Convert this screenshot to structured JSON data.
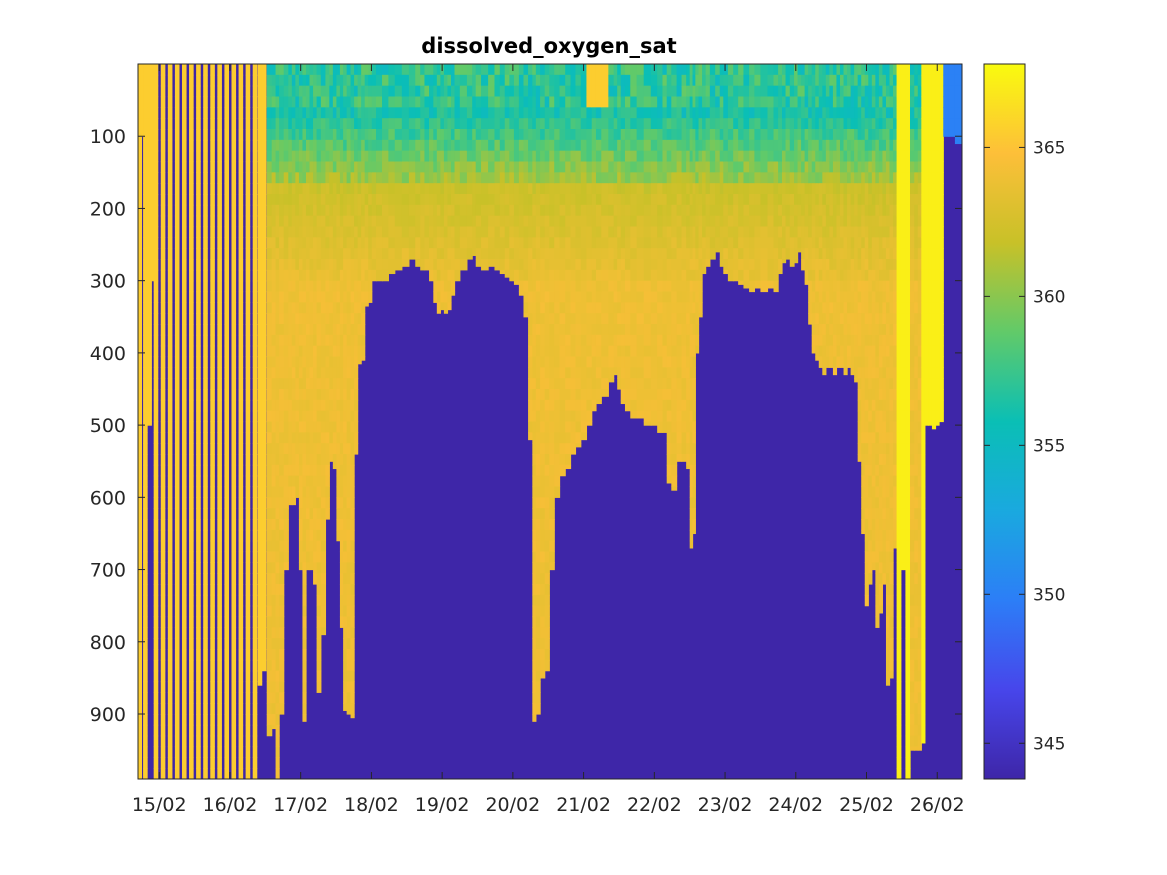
{
  "chart_data": {
    "type": "heatmap",
    "title": "dissolved_oxygen_sat",
    "xlabel": "",
    "ylabel": "",
    "x_tick_labels": [
      "15/02",
      "16/02",
      "17/02",
      "18/02",
      "19/02",
      "20/02",
      "21/02",
      "22/02",
      "23/02",
      "24/02",
      "25/02",
      "26/02"
    ],
    "x_tick_days": [
      15,
      16,
      17,
      18,
      19,
      20,
      21,
      22,
      23,
      24,
      25,
      26
    ],
    "xlim_days": [
      14.7,
      26.35
    ],
    "y_tick_values": [
      100,
      200,
      300,
      400,
      500,
      600,
      700,
      800,
      900
    ],
    "ylim": [
      0,
      990
    ],
    "y_reversed": true,
    "colorbar": {
      "colormap": "parula",
      "clim": [
        343.8,
        367.8
      ],
      "tick_values": [
        345,
        350,
        355,
        360,
        365
      ]
    },
    "profile_bottom_depth": [
      [
        14.72,
        990
      ],
      [
        14.76,
        100
      ],
      [
        14.8,
        990
      ],
      [
        14.86,
        500
      ],
      [
        14.9,
        300
      ],
      [
        14.95,
        990
      ],
      [
        15.05,
        990
      ],
      [
        15.15,
        990
      ],
      [
        15.25,
        990
      ],
      [
        15.35,
        990
      ],
      [
        15.45,
        990
      ],
      [
        15.55,
        990
      ],
      [
        15.65,
        990
      ],
      [
        15.75,
        990
      ],
      [
        15.85,
        990
      ],
      [
        15.95,
        990
      ],
      [
        16.05,
        990
      ],
      [
        16.15,
        990
      ],
      [
        16.25,
        990
      ],
      [
        16.35,
        990
      ],
      [
        16.42,
        860
      ],
      [
        16.48,
        840
      ],
      [
        16.56,
        930
      ],
      [
        16.62,
        920
      ],
      [
        16.67,
        990
      ],
      [
        16.72,
        900
      ],
      [
        16.8,
        700
      ],
      [
        16.85,
        610
      ],
      [
        16.9,
        610
      ],
      [
        16.95,
        600
      ],
      [
        17.0,
        700
      ],
      [
        17.05,
        910
      ],
      [
        17.1,
        700
      ],
      [
        17.15,
        700
      ],
      [
        17.2,
        720
      ],
      [
        17.25,
        870
      ],
      [
        17.32,
        790
      ],
      [
        17.38,
        630
      ],
      [
        17.43,
        550
      ],
      [
        17.48,
        560
      ],
      [
        17.53,
        660
      ],
      [
        17.58,
        780
      ],
      [
        17.62,
        895
      ],
      [
        17.68,
        900
      ],
      [
        17.73,
        905
      ],
      [
        17.78,
        540
      ],
      [
        17.83,
        415
      ],
      [
        17.88,
        410
      ],
      [
        17.93,
        335
      ],
      [
        17.98,
        330
      ],
      [
        18.03,
        300
      ],
      [
        18.1,
        300
      ],
      [
        18.2,
        300
      ],
      [
        18.28,
        290
      ],
      [
        18.38,
        285
      ],
      [
        18.48,
        280
      ],
      [
        18.58,
        270
      ],
      [
        18.66,
        280
      ],
      [
        18.72,
        285
      ],
      [
        18.78,
        285
      ],
      [
        18.85,
        300
      ],
      [
        18.9,
        330
      ],
      [
        18.95,
        345
      ],
      [
        19.0,
        340
      ],
      [
        19.05,
        345
      ],
      [
        19.1,
        340
      ],
      [
        19.15,
        320
      ],
      [
        19.2,
        300
      ],
      [
        19.3,
        285
      ],
      [
        19.4,
        270
      ],
      [
        19.45,
        265
      ],
      [
        19.5,
        280
      ],
      [
        19.6,
        285
      ],
      [
        19.7,
        280
      ],
      [
        19.78,
        285
      ],
      [
        19.85,
        290
      ],
      [
        19.92,
        295
      ],
      [
        19.98,
        300
      ],
      [
        20.05,
        305
      ],
      [
        20.12,
        320
      ],
      [
        20.18,
        350
      ],
      [
        20.25,
        520
      ],
      [
        20.3,
        910
      ],
      [
        20.35,
        900
      ],
      [
        20.42,
        850
      ],
      [
        20.48,
        840
      ],
      [
        20.55,
        700
      ],
      [
        20.62,
        600
      ],
      [
        20.7,
        570
      ],
      [
        20.78,
        560
      ],
      [
        20.85,
        540
      ],
      [
        20.92,
        530
      ],
      [
        21.0,
        520
      ],
      [
        21.08,
        500
      ],
      [
        21.15,
        480
      ],
      [
        21.2,
        470
      ],
      [
        21.3,
        460
      ],
      [
        21.4,
        440
      ],
      [
        21.45,
        430
      ],
      [
        21.5,
        450
      ],
      [
        21.55,
        470
      ],
      [
        21.62,
        480
      ],
      [
        21.7,
        490
      ],
      [
        21.8,
        490
      ],
      [
        21.9,
        500
      ],
      [
        22.0,
        500
      ],
      [
        22.08,
        510
      ],
      [
        22.15,
        510
      ],
      [
        22.2,
        580
      ],
      [
        22.28,
        590
      ],
      [
        22.35,
        550
      ],
      [
        22.42,
        550
      ],
      [
        22.48,
        560
      ],
      [
        22.52,
        670
      ],
      [
        22.56,
        650
      ],
      [
        22.6,
        400
      ],
      [
        22.65,
        350
      ],
      [
        22.7,
        290
      ],
      [
        22.75,
        280
      ],
      [
        22.82,
        270
      ],
      [
        22.9,
        260
      ],
      [
        22.95,
        280
      ],
      [
        23.0,
        290
      ],
      [
        23.08,
        300
      ],
      [
        23.15,
        300
      ],
      [
        23.22,
        305
      ],
      [
        23.3,
        310
      ],
      [
        23.38,
        315
      ],
      [
        23.45,
        310
      ],
      [
        23.55,
        315
      ],
      [
        23.65,
        310
      ],
      [
        23.72,
        315
      ],
      [
        23.78,
        290
      ],
      [
        23.83,
        275
      ],
      [
        23.88,
        270
      ],
      [
        23.95,
        280
      ],
      [
        24.0,
        275
      ],
      [
        24.05,
        260
      ],
      [
        24.1,
        285
      ],
      [
        24.15,
        305
      ],
      [
        24.2,
        360
      ],
      [
        24.25,
        400
      ],
      [
        24.3,
        410
      ],
      [
        24.35,
        420
      ],
      [
        24.4,
        430
      ],
      [
        24.45,
        420
      ],
      [
        24.5,
        420
      ],
      [
        24.55,
        430
      ],
      [
        24.6,
        420
      ],
      [
        24.65,
        420
      ],
      [
        24.7,
        430
      ],
      [
        24.75,
        420
      ],
      [
        24.8,
        430
      ],
      [
        24.85,
        440
      ],
      [
        24.9,
        550
      ],
      [
        24.95,
        650
      ],
      [
        25.0,
        750
      ],
      [
        25.05,
        720
      ],
      [
        25.1,
        700
      ],
      [
        25.15,
        780
      ],
      [
        25.2,
        760
      ],
      [
        25.25,
        720
      ],
      [
        25.3,
        860
      ],
      [
        25.35,
        850
      ],
      [
        25.4,
        670
      ],
      [
        25.45,
        990
      ],
      [
        25.52,
        700
      ],
      [
        25.58,
        990
      ],
      [
        25.65,
        950
      ],
      [
        25.7,
        950
      ],
      [
        25.75,
        950
      ],
      [
        25.8,
        940
      ],
      [
        25.85,
        500
      ],
      [
        25.9,
        500
      ],
      [
        25.95,
        505
      ],
      [
        26.0,
        500
      ],
      [
        26.05,
        495
      ],
      [
        26.12,
        100
      ],
      [
        26.2,
        100
      ],
      [
        26.3,
        110
      ]
    ]
  }
}
